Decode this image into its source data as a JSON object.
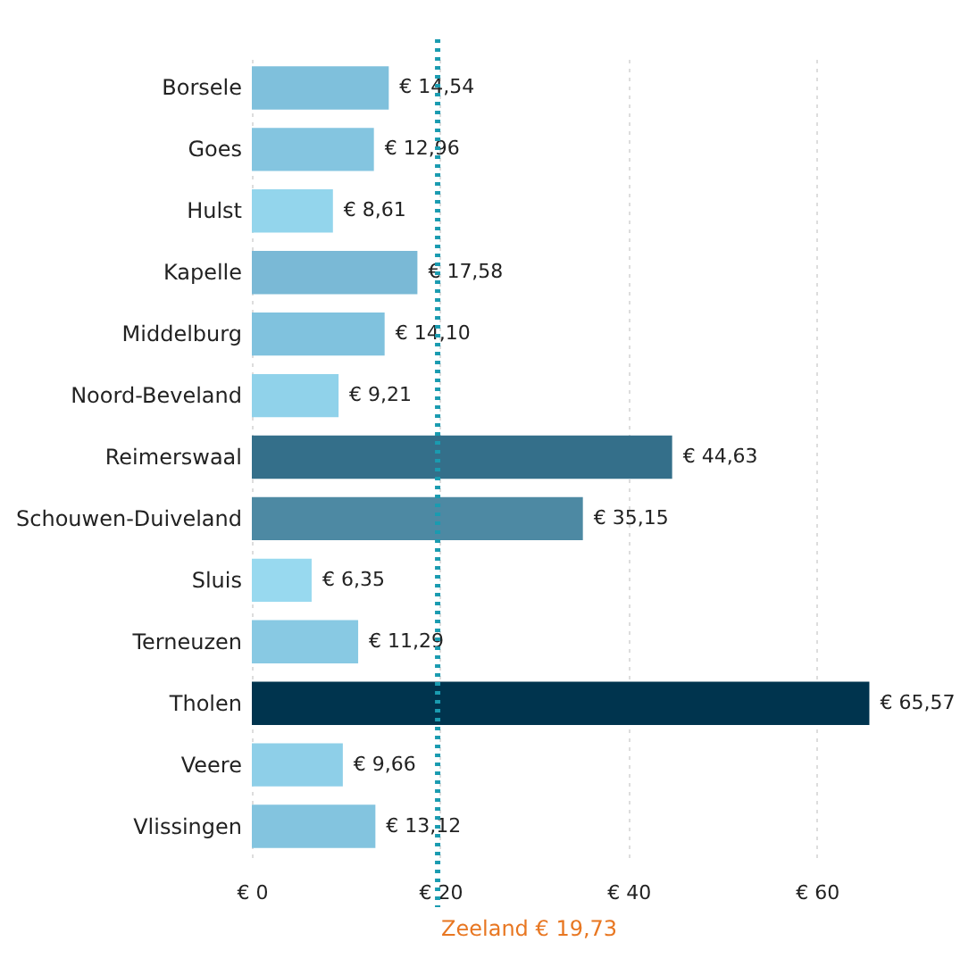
{
  "chart_data": {
    "type": "bar",
    "orientation": "horizontal",
    "categories": [
      "Borsele",
      "Goes",
      "Hulst",
      "Kapelle",
      "Middelburg",
      "Noord-Beveland",
      "Reimerswaal",
      "Schouwen-Duiveland",
      "Sluis",
      "Terneuzen",
      "Tholen",
      "Veere",
      "Vlissingen"
    ],
    "values": [
      14.54,
      12.96,
      8.61,
      17.58,
      14.1,
      9.21,
      44.63,
      35.15,
      6.35,
      11.29,
      65.57,
      9.66,
      13.12
    ],
    "value_labels": [
      "€ 14,54",
      "€ 12,96",
      "€ 8,61",
      "€ 17,58",
      "€ 14,10",
      "€ 9,21",
      "€ 44,63",
      "€ 35,15",
      "€ 6,35",
      "€ 11,29",
      "€ 65,57",
      "€ 9,66",
      "€ 13,12"
    ],
    "colors": [
      "#7fc0dc",
      "#84c5e0",
      "#93d5ec",
      "#7ab9d6",
      "#80c2de",
      "#90d2ea",
      "#346f8a",
      "#4d89a3",
      "#98d9ef",
      "#88c9e3",
      "#00344e",
      "#8ecfe8",
      "#83c4df"
    ],
    "xlim": [
      0,
      66
    ],
    "xticks": [
      {
        "value": 0,
        "label": "€ 0"
      },
      {
        "value": 20,
        "label": "€ 20"
      },
      {
        "value": 40,
        "label": "€ 40"
      },
      {
        "value": 60,
        "label": "€ 60"
      }
    ],
    "grid": "x",
    "ref_lines": [
      {
        "axis": "x",
        "value": 19.73,
        "label": "Zeeland € 19,73",
        "color": "#1a9bb0",
        "line_style": "dotted"
      }
    ]
  }
}
